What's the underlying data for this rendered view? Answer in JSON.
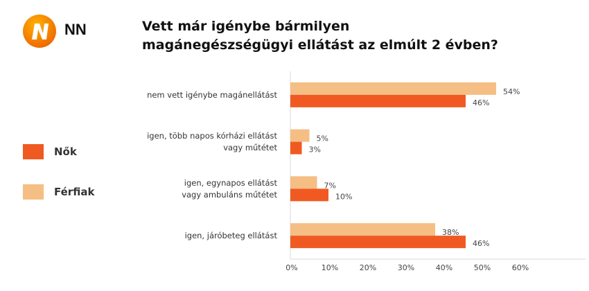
{
  "brand": "NN",
  "colors": {
    "nok": "#F05A22",
    "ferfiak": "#F5BE84",
    "logo": "#EE7F00"
  },
  "chart_data": {
    "type": "bar",
    "orientation": "horizontal",
    "title": "Vett már igénybe bármilyen magánegészségügyi ellátást az elmúlt 2 évben?",
    "title_lines": [
      "Vett már igénybe bármilyen",
      "magánegészségügyi ellátást az elmúlt 2 évben?"
    ],
    "categories": [
      [
        "nem vett igénybe magánellátást"
      ],
      [
        "igen, több napos kórházi ellátást",
        "vagy  műtétet"
      ],
      [
        "igen, egynapos ellátást",
        "vagy ambuláns műtétet"
      ],
      [
        "igen, járóbeteg ellátást"
      ]
    ],
    "series": [
      {
        "name": "Férfiak",
        "values": [
          54,
          5,
          7,
          38
        ],
        "labels": [
          "54%",
          "5%",
          "7%",
          "38%"
        ]
      },
      {
        "name": "Nők",
        "values": [
          46,
          3,
          10,
          46
        ],
        "labels": [
          "46%",
          "3%",
          "10%",
          "46%"
        ]
      }
    ],
    "legend": [
      {
        "name": "Nők"
      },
      {
        "name": "Férfiak"
      }
    ],
    "legend_position": "left",
    "xlim": [
      0,
      60
    ],
    "xticks": [
      "0%",
      "10%",
      "20%",
      "30%",
      "40%",
      "50%",
      "60%"
    ],
    "grid": false
  }
}
